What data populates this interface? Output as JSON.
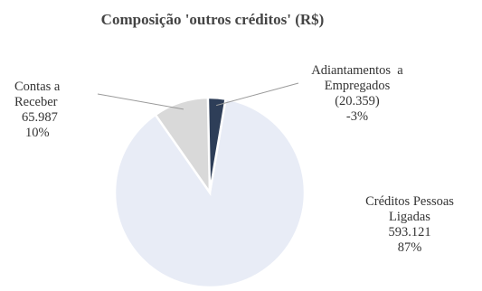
{
  "chart_data": {
    "type": "pie",
    "title": "Composição 'outros créditos' (R$)",
    "slices": [
      {
        "name": "Créditos Pessoas Ligadas",
        "label_lines": [
          "Créditos Pessoas",
          "Ligadas"
        ],
        "value_text": "593.121",
        "percent_text": "87%",
        "value": 593121,
        "color": "#e8ecf6"
      },
      {
        "name": "Contas a Receber",
        "label_lines": [
          "Contas a",
          "Receber"
        ],
        "value_text": "65.987",
        "percent_text": "10%",
        "value": 65987,
        "color": "#d9d9d9"
      },
      {
        "name": "Adiantamentos a Empregados",
        "label_lines": [
          "Adiantamentos  a",
          "Empregados"
        ],
        "value_text": "(20.359)",
        "percent_text": "-3%",
        "value": -20359,
        "color": "#2e3e58"
      }
    ],
    "legend": "none"
  }
}
